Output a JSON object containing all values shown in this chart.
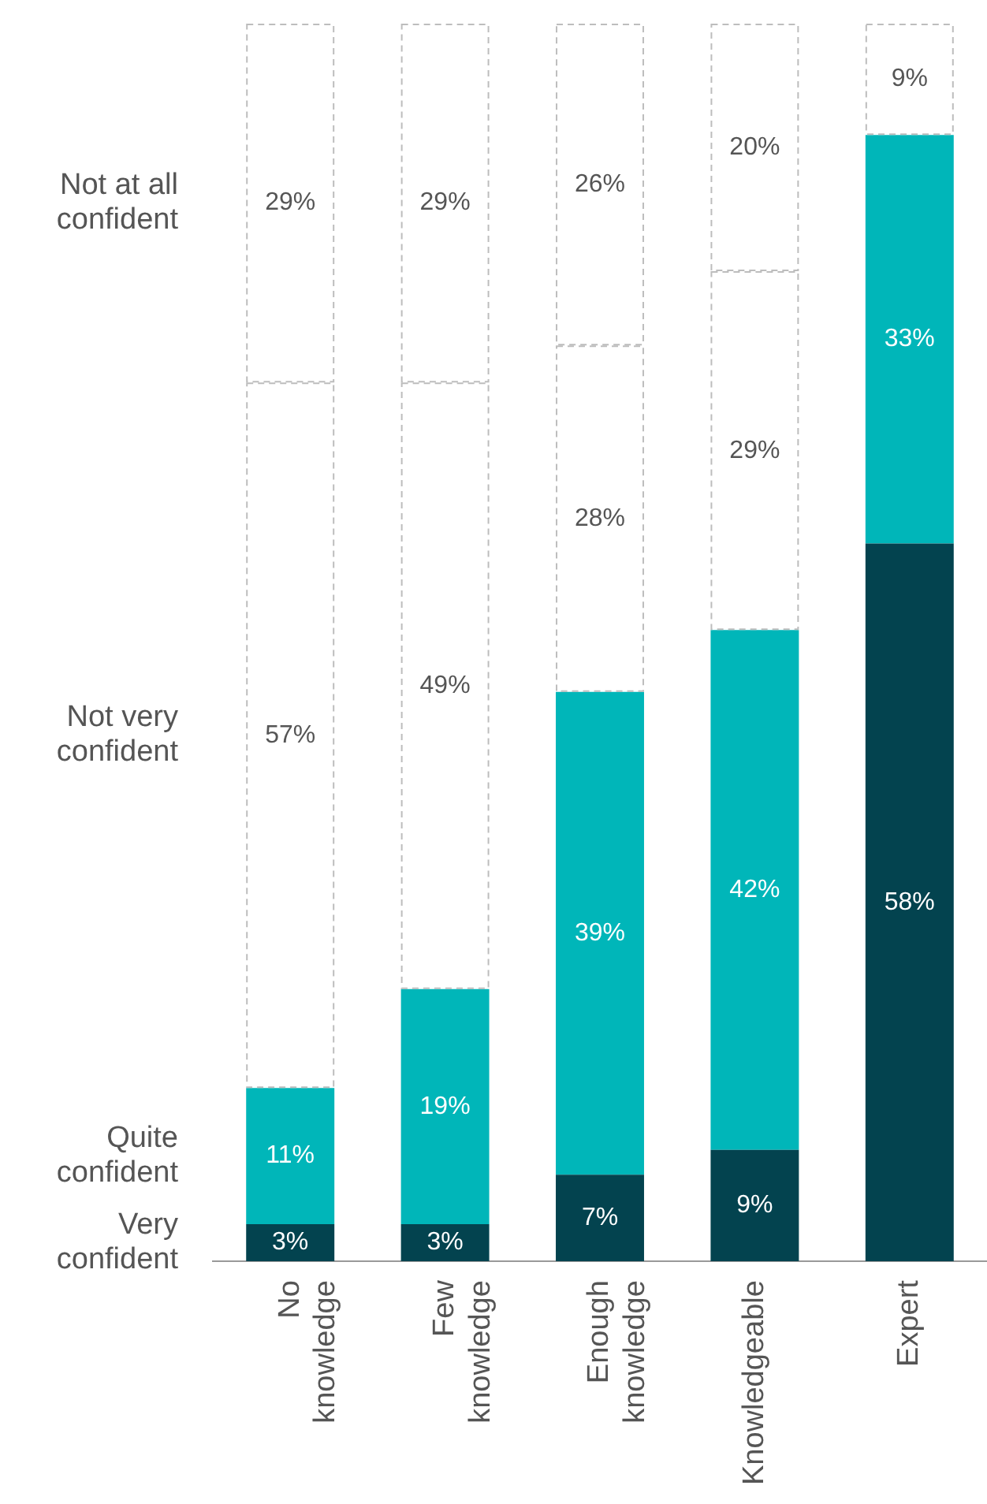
{
  "chart_data": {
    "type": "bar",
    "stacked": true,
    "categories": [
      "No knowledge",
      "Few knowledge",
      "Enough knowledge",
      "Knowledgeable",
      "Expert"
    ],
    "ylim": [
      0,
      100
    ],
    "tick_labels": "x",
    "series": [
      {
        "name": "Very confident",
        "color": "#03434f",
        "values": [
          3,
          3,
          7,
          9,
          58
        ],
        "value_labels": [
          "3%",
          "3%",
          "7%",
          "9%",
          "58%"
        ]
      },
      {
        "name": "Quite confident",
        "color": "#00b6b9",
        "values": [
          11,
          19,
          39,
          42,
          33
        ],
        "value_labels": [
          "11%",
          "19%",
          "39%",
          "42%",
          "33%"
        ]
      },
      {
        "name": "Not very confident",
        "color": "#ffffff",
        "line_style": "dashed",
        "values": [
          57,
          49,
          28,
          29,
          null
        ],
        "value_labels": [
          "57%",
          "49%",
          "28%",
          "29%",
          null
        ]
      },
      {
        "name": "Not at all confident",
        "color": "#ffffff",
        "line_style": "dashed",
        "values": [
          29,
          29,
          26,
          20,
          9
        ],
        "value_labels": [
          "29%",
          "29%",
          "26%",
          "20%",
          "9%"
        ]
      }
    ]
  }
}
